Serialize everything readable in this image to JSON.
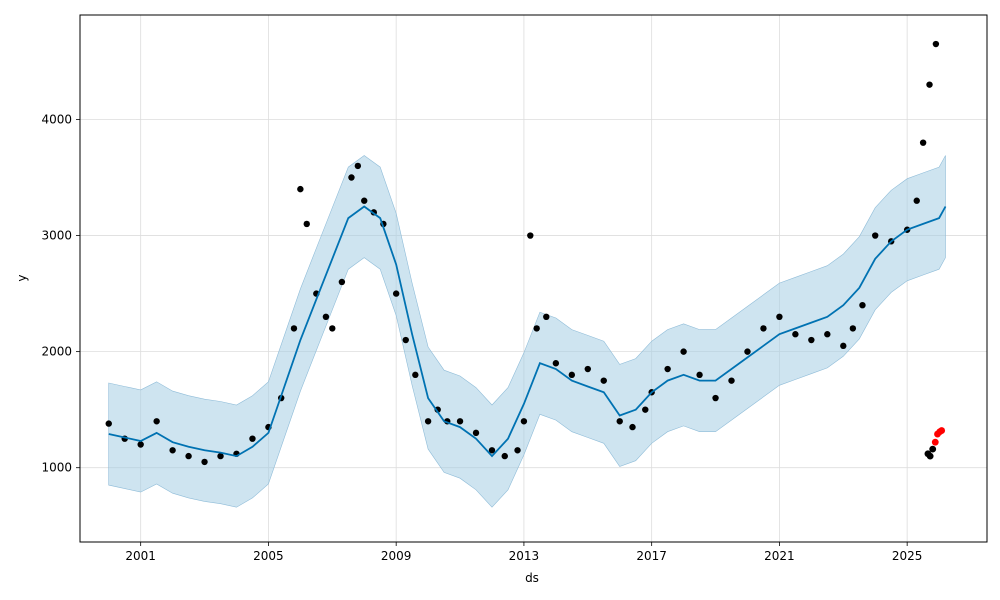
{
  "chart_data": {
    "type": "line",
    "xlabel": "ds",
    "ylabel": "y",
    "x_tick_labels": [
      "2001",
      "2005",
      "2009",
      "2013",
      "2017",
      "2021",
      "2025"
    ],
    "y_tick_labels": [
      "1000",
      "2000",
      "3000",
      "4000"
    ],
    "xlim": [
      1999.1,
      2027.5
    ],
    "ylim": [
      360,
      4900
    ],
    "grid": true,
    "colors": {
      "forecast_line": "#0072B2",
      "uncertainty_band": "#a6cee3",
      "observed": "#000000",
      "highlight": "#ff0000",
      "grid": "#dddddd"
    },
    "series": [
      {
        "kind": "forecast",
        "x": [
          2000.0,
          2000.5,
          2001.0,
          2001.5,
          2002.0,
          2002.5,
          2003.0,
          2003.5,
          2004.0,
          2004.5,
          2005.0,
          2005.5,
          2006.0,
          2006.5,
          2007.0,
          2007.5,
          2008.0,
          2008.5,
          2009.0,
          2009.5,
          2010.0,
          2010.5,
          2011.0,
          2011.5,
          2012.0,
          2012.5,
          2013.0,
          2013.5,
          2014.0,
          2014.5,
          2015.0,
          2015.5,
          2016.0,
          2016.5,
          2017.0,
          2017.5,
          2018.0,
          2018.5,
          2019.0,
          2019.5,
          2020.0,
          2020.5,
          2021.0,
          2021.5,
          2022.0,
          2022.5,
          2023.0,
          2023.5,
          2024.0,
          2024.5,
          2025.0,
          2025.5,
          2026.0,
          2026.2
        ],
        "yhat": [
          1290,
          1260,
          1230,
          1300,
          1220,
          1180,
          1150,
          1130,
          1100,
          1180,
          1300,
          1700,
          2100,
          2450,
          2800,
          3150,
          3250,
          3150,
          2750,
          2150,
          1600,
          1400,
          1350,
          1250,
          1100,
          1250,
          1550,
          1900,
          1850,
          1750,
          1700,
          1650,
          1450,
          1500,
          1650,
          1750,
          1800,
          1750,
          1750,
          1850,
          1950,
          2050,
          2150,
          2200,
          2250,
          2300,
          2400,
          2550,
          2800,
          2950,
          3050,
          3100,
          3150,
          3250
        ],
        "yhat_lower": [
          850,
          820,
          790,
          860,
          780,
          740,
          710,
          690,
          660,
          740,
          860,
          1260,
          1660,
          2010,
          2360,
          2710,
          2810,
          2710,
          2310,
          1710,
          1160,
          960,
          910,
          810,
          660,
          810,
          1110,
          1460,
          1410,
          1310,
          1260,
          1210,
          1010,
          1060,
          1210,
          1310,
          1360,
          1310,
          1310,
          1410,
          1510,
          1610,
          1710,
          1760,
          1810,
          1860,
          1960,
          2110,
          2360,
          2510,
          2610,
          2660,
          2710,
          2810
        ],
        "yhat_upper": [
          1730,
          1700,
          1670,
          1740,
          1660,
          1620,
          1590,
          1570,
          1540,
          1620,
          1740,
          2140,
          2540,
          2890,
          3240,
          3590,
          3690,
          3590,
          3190,
          2590,
          2040,
          1840,
          1790,
          1690,
          1540,
          1690,
          1990,
          2340,
          2290,
          2190,
          2140,
          2090,
          1890,
          1940,
          2090,
          2190,
          2240,
          2190,
          2190,
          2290,
          2390,
          2490,
          2590,
          2640,
          2690,
          2740,
          2840,
          2990,
          3240,
          3390,
          3490,
          3540,
          3590,
          3690
        ]
      },
      {
        "kind": "observed",
        "x": [
          2000.0,
          2000.5,
          2001.0,
          2001.5,
          2002.0,
          2002.5,
          2003.0,
          2003.5,
          2004.0,
          2004.5,
          2005.0,
          2005.4,
          2005.8,
          2006.0,
          2006.2,
          2006.5,
          2006.8,
          2007.0,
          2007.3,
          2007.6,
          2007.8,
          2008.0,
          2008.3,
          2008.6,
          2009.0,
          2009.3,
          2009.6,
          2010.0,
          2010.3,
          2010.6,
          2011.0,
          2011.5,
          2012.0,
          2012.4,
          2012.8,
          2013.0,
          2013.2,
          2013.4,
          2013.7,
          2014.0,
          2014.5,
          2015.0,
          2015.5,
          2016.0,
          2016.4,
          2016.8,
          2017.0,
          2017.5,
          2018.0,
          2018.5,
          2019.0,
          2019.5,
          2020.0,
          2020.5,
          2021.0,
          2021.5,
          2022.0,
          2022.5,
          2023.0,
          2023.3,
          2023.6,
          2024.0,
          2024.5,
          2025.0,
          2025.3,
          2025.5,
          2025.7,
          2025.9
        ],
        "y": [
          1380,
          1250,
          1200,
          1400,
          1150,
          1100,
          1050,
          1100,
          1120,
          1250,
          1350,
          1600,
          2200,
          3400,
          3100,
          2500,
          2300,
          2200,
          2600,
          3500,
          3600,
          3300,
          3200,
          3100,
          2500,
          2100,
          1800,
          1400,
          1500,
          1400,
          1400,
          1300,
          1150,
          1100,
          1150,
          1400,
          3000,
          2200,
          2300,
          1900,
          1800,
          1850,
          1750,
          1400,
          1350,
          1500,
          1650,
          1850,
          2000,
          1800,
          1600,
          1750,
          2000,
          2200,
          2300,
          2150,
          2100,
          2150,
          2050,
          2200,
          2400,
          3000,
          2950,
          3050,
          3300,
          3800,
          4300,
          4650
        ]
      },
      {
        "kind": "highlight",
        "x": [
          2025.65,
          2025.72,
          2025.8,
          2025.88,
          2025.95,
          2026.02,
          2026.08
        ],
        "y": [
          1120,
          1100,
          1160,
          1220,
          1290,
          1310,
          1320
        ]
      }
    ]
  }
}
